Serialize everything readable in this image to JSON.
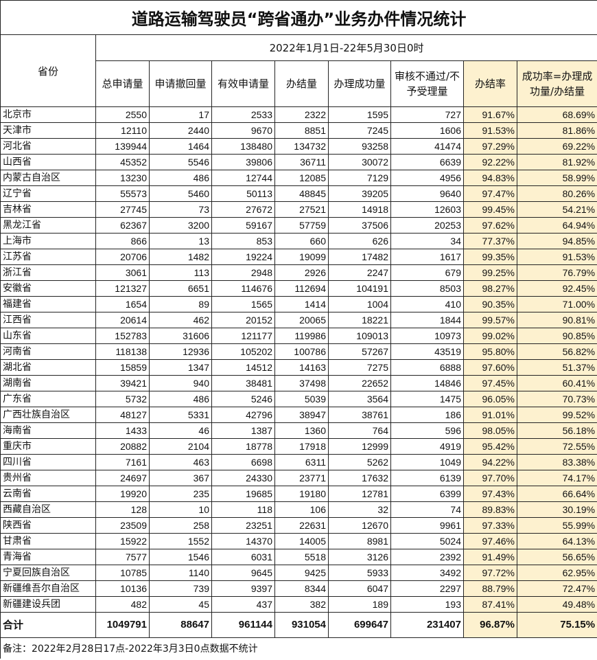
{
  "title": "道路运输驾驶员“跨省通办”业务办件情况统计",
  "date_range": "2022年1月1日-22年5月30日0时",
  "headers": [
    "省份",
    "总申请量",
    "申请撤回量",
    "有效申请量",
    "办结量",
    "办理成功量",
    "审核不通过/不予受理量",
    "办结率",
    "成功率=办理成功量/办结量"
  ],
  "highlight_color": "#fdf1cf",
  "rows": [
    [
      "北京市",
      "2550",
      "17",
      "2533",
      "2322",
      "1595",
      "727",
      "91.67%",
      "68.69%"
    ],
    [
      "天津市",
      "12110",
      "2440",
      "9670",
      "8851",
      "7245",
      "1606",
      "91.53%",
      "81.86%"
    ],
    [
      "河北省",
      "139944",
      "1464",
      "138480",
      "134732",
      "93258",
      "41474",
      "97.29%",
      "69.22%"
    ],
    [
      "山西省",
      "45352",
      "5546",
      "39806",
      "36711",
      "30072",
      "6639",
      "92.22%",
      "81.92%"
    ],
    [
      "内蒙古自治区",
      "13230",
      "486",
      "12744",
      "12085",
      "7129",
      "4956",
      "94.83%",
      "58.99%"
    ],
    [
      "辽宁省",
      "55573",
      "5460",
      "50113",
      "48845",
      "39205",
      "9640",
      "97.47%",
      "80.26%"
    ],
    [
      "吉林省",
      "27745",
      "73",
      "27672",
      "27521",
      "14918",
      "12603",
      "99.45%",
      "54.21%"
    ],
    [
      "黑龙江省",
      "62367",
      "3200",
      "59167",
      "57759",
      "37506",
      "20253",
      "97.62%",
      "64.94%"
    ],
    [
      "上海市",
      "866",
      "13",
      "853",
      "660",
      "626",
      "34",
      "77.37%",
      "94.85%"
    ],
    [
      "江苏省",
      "20706",
      "1482",
      "19224",
      "19099",
      "17482",
      "1617",
      "99.35%",
      "91.53%"
    ],
    [
      "浙江省",
      "3061",
      "113",
      "2948",
      "2926",
      "2247",
      "679",
      "99.25%",
      "76.79%"
    ],
    [
      "安徽省",
      "121327",
      "6651",
      "114676",
      "112694",
      "104191",
      "8503",
      "98.27%",
      "92.45%"
    ],
    [
      "福建省",
      "1654",
      "89",
      "1565",
      "1414",
      "1004",
      "410",
      "90.35%",
      "71.00%"
    ],
    [
      "江西省",
      "20614",
      "462",
      "20152",
      "20065",
      "18221",
      "1844",
      "99.57%",
      "90.81%"
    ],
    [
      "山东省",
      "152783",
      "31606",
      "121177",
      "119986",
      "109013",
      "10973",
      "99.02%",
      "90.85%"
    ],
    [
      "河南省",
      "118138",
      "12936",
      "105202",
      "100786",
      "57267",
      "43519",
      "95.80%",
      "56.82%"
    ],
    [
      "湖北省",
      "15859",
      "1347",
      "14512",
      "14163",
      "7275",
      "6888",
      "97.60%",
      "51.37%"
    ],
    [
      "湖南省",
      "39421",
      "940",
      "38481",
      "37498",
      "22652",
      "14846",
      "97.45%",
      "60.41%"
    ],
    [
      "广东省",
      "5732",
      "486",
      "5246",
      "5039",
      "3564",
      "1475",
      "96.05%",
      "70.73%"
    ],
    [
      "广西壮族自治区",
      "48127",
      "5331",
      "42796",
      "38947",
      "38761",
      "186",
      "91.01%",
      "99.52%"
    ],
    [
      "海南省",
      "1433",
      "46",
      "1387",
      "1360",
      "764",
      "596",
      "98.05%",
      "56.18%"
    ],
    [
      "重庆市",
      "20882",
      "2104",
      "18778",
      "17918",
      "12999",
      "4919",
      "95.42%",
      "72.55%"
    ],
    [
      "四川省",
      "7161",
      "463",
      "6698",
      "6311",
      "5262",
      "1049",
      "94.22%",
      "83.38%"
    ],
    [
      "贵州省",
      "24697",
      "367",
      "24330",
      "23771",
      "17632",
      "6139",
      "97.70%",
      "74.17%"
    ],
    [
      "云南省",
      "19920",
      "235",
      "19685",
      "19180",
      "12781",
      "6399",
      "97.43%",
      "66.64%"
    ],
    [
      "西藏自治区",
      "128",
      "10",
      "118",
      "106",
      "32",
      "74",
      "89.83%",
      "30.19%"
    ],
    [
      "陕西省",
      "23509",
      "258",
      "23251",
      "22631",
      "12670",
      "9961",
      "97.33%",
      "55.99%"
    ],
    [
      "甘肃省",
      "15922",
      "1552",
      "14370",
      "14005",
      "8981",
      "5024",
      "97.46%",
      "64.13%"
    ],
    [
      "青海省",
      "7577",
      "1546",
      "6031",
      "5518",
      "3126",
      "2392",
      "91.49%",
      "56.65%"
    ],
    [
      "宁夏回族自治区",
      "10785",
      "1140",
      "9645",
      "9425",
      "5933",
      "3492",
      "97.72%",
      "62.95%"
    ],
    [
      "新疆维吾尔自治区",
      "10136",
      "739",
      "9397",
      "8344",
      "6047",
      "2297",
      "88.79%",
      "72.47%"
    ],
    [
      "新疆建设兵团",
      "482",
      "45",
      "437",
      "382",
      "189",
      "193",
      "87.41%",
      "49.48%"
    ]
  ],
  "total": [
    "合计",
    "1049791",
    "88647",
    "961144",
    "931054",
    "699647",
    "231407",
    "96.87%",
    "75.15%"
  ],
  "note": "备注：2022年2月28日17点-2022年3月3日0点数据不统计"
}
